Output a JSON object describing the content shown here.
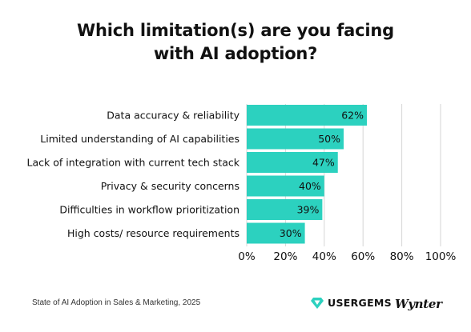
{
  "chart_data": {
    "type": "bar",
    "orientation": "horizontal",
    "title": "Which limitation(s) are you facing with AI adoption?",
    "title_lines": [
      "Which limitation(s) are you facing",
      "with AI adoption?"
    ],
    "categories": [
      "Data accuracy & reliability",
      "Limited understanding of AI capabilities",
      "Lack of integration with current tech stack",
      "Privacy & security concerns",
      "Difficulties in workflow prioritization",
      "High costs/ resource requirements"
    ],
    "values": [
      62,
      50,
      47,
      40,
      39,
      30
    ],
    "data_labels": [
      "62%",
      "50%",
      "47%",
      "40%",
      "39%",
      "30%"
    ],
    "xlim": [
      0,
      100
    ],
    "xticks": [
      0,
      20,
      40,
      60,
      80,
      100
    ],
    "xtick_labels": [
      "0%",
      "20%",
      "40%",
      "60%",
      "80%",
      "100%"
    ],
    "grid": true,
    "bar_color": "#2cd1bf",
    "grid_color": "#d6d6d6"
  },
  "footer": {
    "source": "State of AI Adoption in Sales & Marketing, 2025",
    "brand_1": "USERGEMS",
    "brand_2": "Wynter",
    "gem_icon": "gem-icon"
  }
}
